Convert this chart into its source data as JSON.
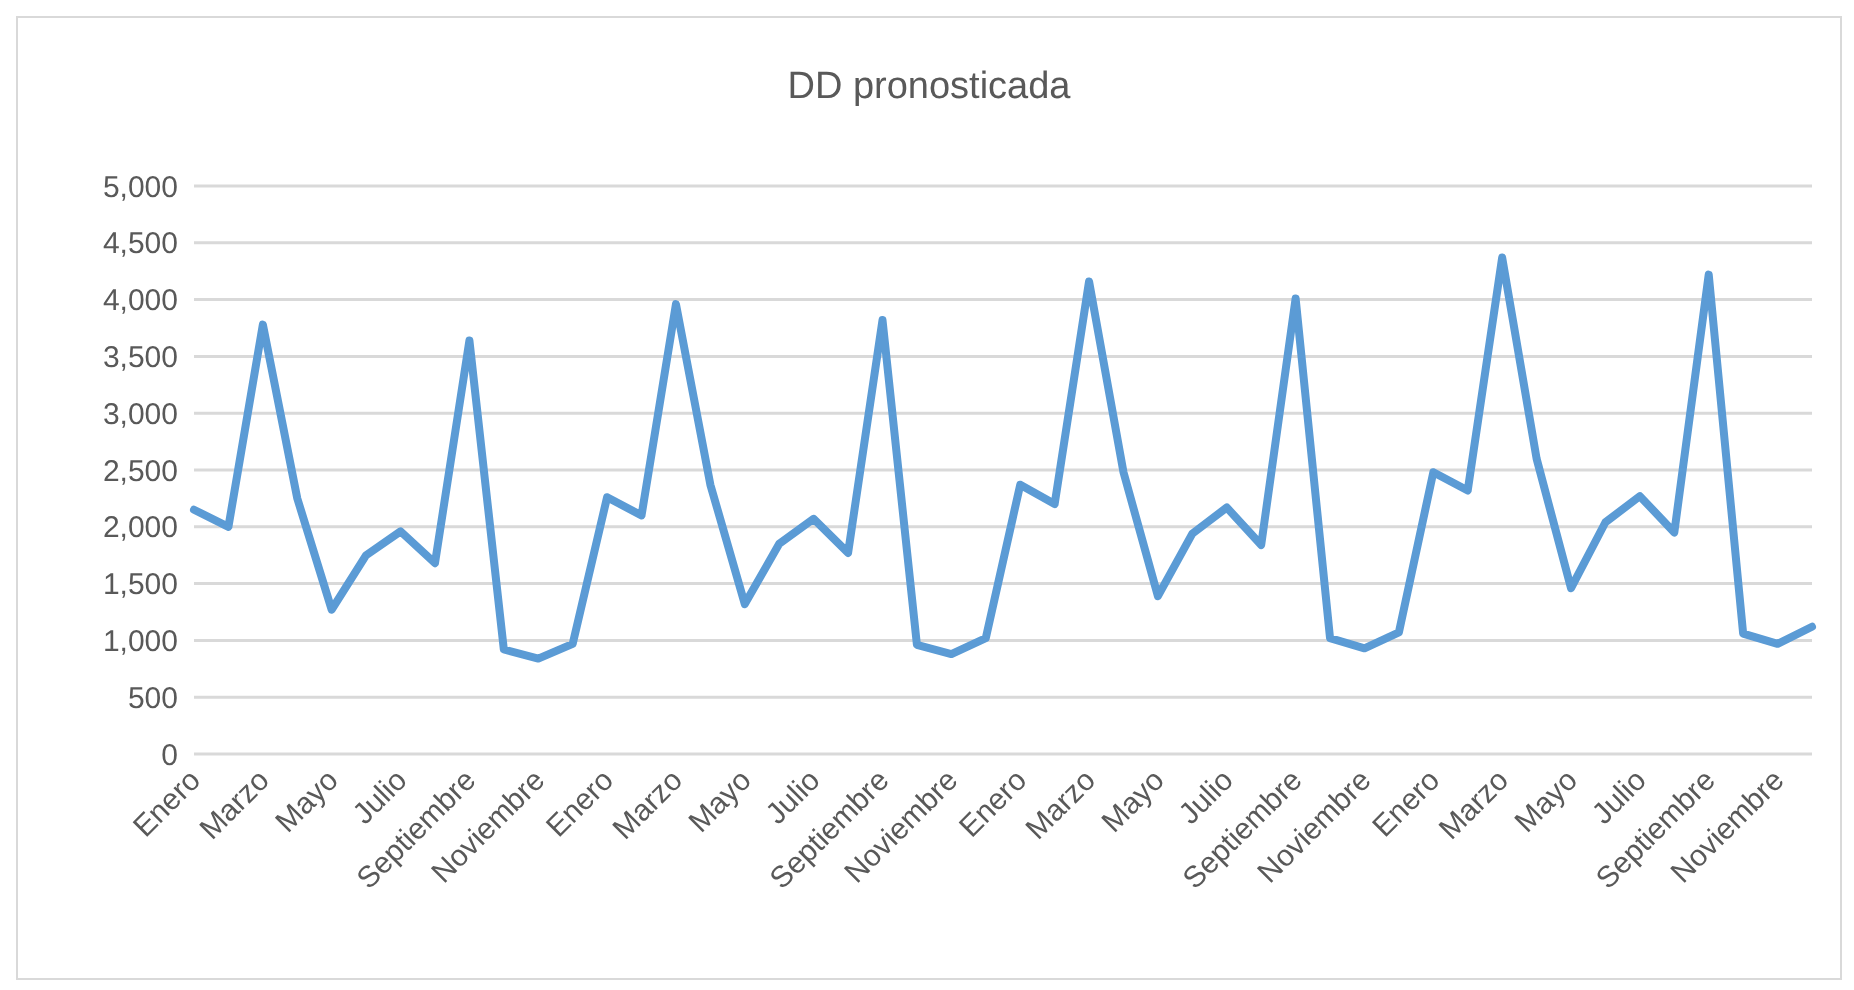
{
  "chart_data": {
    "type": "line",
    "title": "DD pronosticada",
    "categories": [
      "Enero",
      null,
      "Marzo",
      null,
      "Mayo",
      null,
      "Julio",
      null,
      "Septiembre",
      null,
      "Noviembre",
      null,
      "Enero",
      null,
      "Marzo",
      null,
      "Mayo",
      null,
      "Julio",
      null,
      "Septiembre",
      null,
      "Noviembre",
      null,
      "Enero",
      null,
      "Marzo",
      null,
      "Mayo",
      null,
      "Julio",
      null,
      "Septiembre",
      null,
      "Noviembre",
      null,
      "Enero",
      null,
      "Marzo",
      null,
      "Mayo",
      null,
      "Julio",
      null,
      "Septiembre",
      null,
      "Noviembre",
      null
    ],
    "series": [
      {
        "color": "#5b9bd5",
        "values": [
          2150,
          2000,
          3780,
          2250,
          1270,
          1750,
          1960,
          1680,
          3640,
          920,
          840,
          970,
          2260,
          2100,
          3960,
          2370,
          1320,
          1850,
          2070,
          1770,
          3820,
          960,
          880,
          1020,
          2370,
          2200,
          4160,
          2480,
          1390,
          1940,
          2170,
          1840,
          4010,
          1020,
          930,
          1070,
          2480,
          2320,
          4370,
          2600,
          1460,
          2040,
          2270,
          1950,
          4220,
          1060,
          970,
          1120
        ]
      }
    ],
    "ylim": [
      0,
      5000
    ],
    "yticks": [
      {
        "value": 0,
        "label": "0"
      },
      {
        "value": 500,
        "label": "500"
      },
      {
        "value": 1000,
        "label": "1,000"
      },
      {
        "value": 1500,
        "label": "1,500"
      },
      {
        "value": 2000,
        "label": "2,000"
      },
      {
        "value": 2500,
        "label": "2,500"
      },
      {
        "value": 3000,
        "label": "3,000"
      },
      {
        "value": 3500,
        "label": "3,500"
      },
      {
        "value": 4000,
        "label": "4,000"
      },
      {
        "value": 4500,
        "label": "4,500"
      },
      {
        "value": 5000,
        "label": "5,000"
      }
    ],
    "grid": "y",
    "legend": false,
    "marker": "none",
    "line_style": "solid"
  }
}
